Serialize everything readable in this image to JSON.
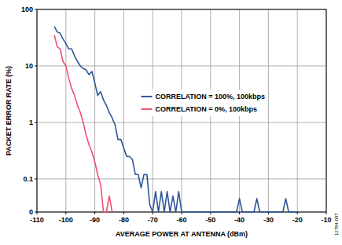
{
  "chart_data": {
    "type": "line",
    "x_label": "AVERAGE POWER AT ANTENNA (dBm)",
    "y_label": "PACKET ERROR RATE (%)",
    "annotation": "12784-007",
    "log": "y",
    "grid": true,
    "legend": "center",
    "xlim": [
      -110,
      -10
    ],
    "xticks": [
      -110,
      -100,
      -90,
      -80,
      -70,
      -60,
      -50,
      -40,
      -30,
      -20,
      -10
    ],
    "ylim": [
      0.026,
      100
    ],
    "yticks": [
      {
        "value": 0.026,
        "label": "0"
      },
      0.1,
      1,
      10,
      100
    ],
    "x": [
      -104,
      -103,
      -102,
      -101,
      -100,
      -99,
      -98,
      -97,
      -96,
      -95,
      -94,
      -93,
      -92,
      -91,
      -90,
      -89,
      -88,
      -87,
      -86,
      -85,
      -84,
      -83,
      -82,
      -81,
      -80,
      -79,
      -78,
      -77,
      -76,
      -75,
      -74,
      -73,
      -72,
      -71,
      -70,
      -69,
      -68,
      -67,
      -66,
      -65,
      -64,
      -63,
      -62,
      -61,
      -60,
      -41,
      -40,
      -39,
      -35,
      -34,
      -33,
      -25,
      -24,
      -23,
      -20
    ],
    "series": [
      {
        "name": "CORRELATION = 100%, 100kbps",
        "color": "#2e5597",
        "values": [
          50,
          40,
          38,
          30,
          25,
          20,
          20,
          15,
          12,
          10,
          9,
          8.5,
          7,
          8,
          5,
          3,
          3.5,
          2.5,
          2,
          1.5,
          1.2,
          0.9,
          0.5,
          0.5,
          0.35,
          0.25,
          0.25,
          0.22,
          0.12,
          0.12,
          0.07,
          0.12,
          0.12,
          0.035,
          0.026,
          0.06,
          0.026,
          0.06,
          0.026,
          0.06,
          0.026,
          0.05,
          0.026,
          0.06,
          0.026,
          0.026,
          0.045,
          0.026,
          0.026,
          0.045,
          0.026,
          0.026,
          0.045,
          0.026,
          0.026
        ]
      },
      {
        "name": "CORRELATION = 0%, 100kbps",
        "color": "#f0506e",
        "values": [
          35,
          22,
          20,
          12,
          10,
          6,
          4,
          3,
          2,
          1.5,
          1,
          0.6,
          0.4,
          0.3,
          0.2,
          0.12,
          0.08,
          0.026,
          0.026,
          0.05,
          0.026,
          null,
          null,
          null,
          null,
          null,
          null,
          null,
          null,
          null,
          null,
          null,
          null,
          null,
          null,
          null,
          null,
          null,
          null,
          null,
          null,
          null,
          null,
          null,
          null,
          null,
          null,
          null,
          null,
          null,
          null,
          null,
          null,
          null,
          null
        ]
      }
    ]
  }
}
